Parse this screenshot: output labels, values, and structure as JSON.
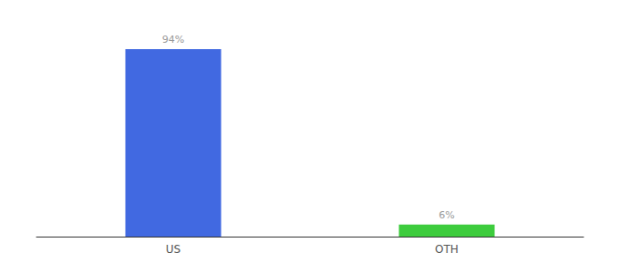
{
  "chart_data": {
    "type": "bar",
    "categories": [
      "US",
      "OTH"
    ],
    "values": [
      94,
      6
    ],
    "colors": [
      "#4169e1",
      "#3dcc3d"
    ],
    "value_labels": [
      "94%",
      "6%"
    ],
    "data_labels": true,
    "ylim": [
      0,
      105
    ],
    "tick_labels": "x",
    "grid": false
  }
}
